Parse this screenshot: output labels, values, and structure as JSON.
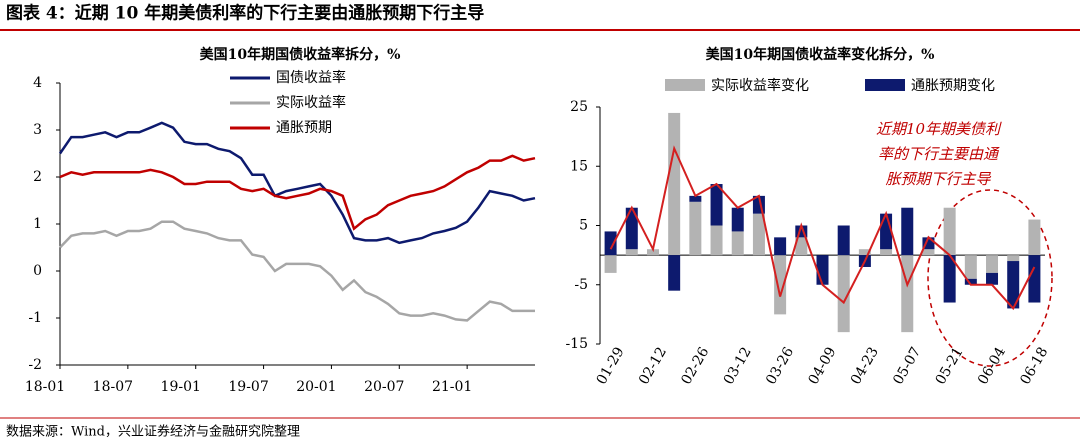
{
  "title": "图表 4：近期 10 年期美债利率的下行主要由通胀预期下行主导",
  "source": "数据来源：Wind，兴业证券经济与金融研究院整理",
  "chart_data": [
    {
      "type": "line",
      "title": "美国10年期国债收益率拆分，%",
      "categories": [
        "18-01",
        null,
        null,
        null,
        null,
        null,
        "18-07",
        null,
        null,
        null,
        null,
        null,
        "19-01",
        null,
        null,
        null,
        null,
        null,
        "19-07",
        null,
        null,
        null,
        null,
        null,
        "20-01",
        null,
        null,
        null,
        null,
        null,
        "20-07",
        null,
        null,
        null,
        null,
        null,
        "21-01",
        null,
        null,
        null,
        null,
        null,
        null
      ],
      "ylim": [
        -2,
        4
      ],
      "yticks": [
        -2,
        -1,
        0,
        1,
        2,
        3,
        4
      ],
      "legend": "top-center",
      "series": [
        {
          "name": "国债收益率",
          "color": "#0d1a6e",
          "values": [
            2.5,
            2.85,
            2.85,
            2.9,
            2.95,
            2.85,
            2.95,
            2.95,
            3.05,
            3.15,
            3.05,
            2.75,
            2.7,
            2.7,
            2.6,
            2.55,
            2.4,
            2.05,
            2.05,
            1.6,
            1.7,
            1.75,
            1.8,
            1.85,
            1.6,
            1.2,
            0.7,
            0.65,
            0.65,
            0.7,
            0.6,
            0.65,
            0.7,
            0.8,
            0.85,
            0.92,
            1.05,
            1.35,
            1.7,
            1.65,
            1.6,
            1.5,
            1.55
          ]
        },
        {
          "name": "实际收益率",
          "color": "#a6a6a6",
          "values": [
            0.5,
            0.75,
            0.8,
            0.8,
            0.85,
            0.75,
            0.85,
            0.85,
            0.9,
            1.05,
            1.05,
            0.9,
            0.85,
            0.8,
            0.7,
            0.65,
            0.65,
            0.35,
            0.3,
            0.0,
            0.15,
            0.15,
            0.15,
            0.1,
            -0.1,
            -0.4,
            -0.2,
            -0.45,
            -0.55,
            -0.7,
            -0.9,
            -0.95,
            -0.95,
            -0.9,
            -0.95,
            -1.03,
            -1.05,
            -0.85,
            -0.65,
            -0.7,
            -0.85,
            -0.85,
            -0.85
          ]
        },
        {
          "name": "通胀预期",
          "color": "#c00000",
          "values": [
            2.0,
            2.1,
            2.05,
            2.1,
            2.1,
            2.1,
            2.1,
            2.1,
            2.15,
            2.1,
            2.0,
            1.85,
            1.85,
            1.9,
            1.9,
            1.9,
            1.75,
            1.7,
            1.75,
            1.6,
            1.55,
            1.6,
            1.65,
            1.75,
            1.7,
            1.6,
            0.9,
            1.1,
            1.2,
            1.4,
            1.5,
            1.6,
            1.65,
            1.7,
            1.8,
            1.95,
            2.1,
            2.2,
            2.35,
            2.35,
            2.45,
            2.35,
            2.4
          ]
        }
      ]
    },
    {
      "type": "bar-line",
      "title": "美国10年期国债收益率变化拆分，%",
      "categories": [
        "01-29",
        null,
        "02-12",
        null,
        "02-26",
        null,
        "03-12",
        null,
        "03-26",
        null,
        "04-09",
        null,
        "04-23",
        null,
        "05-07",
        null,
        "05-21",
        null,
        "06-04",
        null,
        "06-18"
      ],
      "ylim": [
        -15,
        25
      ],
      "yticks": [
        -15,
        -5,
        5,
        15,
        25
      ],
      "stacked": true,
      "legend": "top",
      "annotation": [
        "近期10年期美债利",
        "率的下行主要由通",
        "胀预期下行主导"
      ],
      "series": [
        {
          "name": "实际收益率变化",
          "color": "#b3b3b3",
          "values": [
            -3,
            1,
            1,
            24,
            9,
            5,
            4,
            7,
            -10,
            3,
            0,
            -13,
            1,
            1,
            -13,
            1,
            8,
            -4,
            -3,
            -1,
            6
          ]
        },
        {
          "name": "通胀预期变化",
          "color": "#0d1a6e",
          "values": [
            4,
            7,
            0,
            -6,
            1,
            7,
            4,
            3,
            3,
            2,
            -5,
            5,
            -2,
            6,
            8,
            2,
            -8,
            -1,
            -2,
            -8,
            -8
          ]
        },
        {
          "type": "line",
          "color": "#d42020",
          "values": [
            1,
            8,
            1,
            18,
            10,
            12,
            8,
            10,
            -7,
            5,
            -5,
            -8,
            -1,
            7,
            -5,
            3,
            0,
            -5,
            -5,
            -9,
            -2
          ]
        }
      ]
    }
  ]
}
